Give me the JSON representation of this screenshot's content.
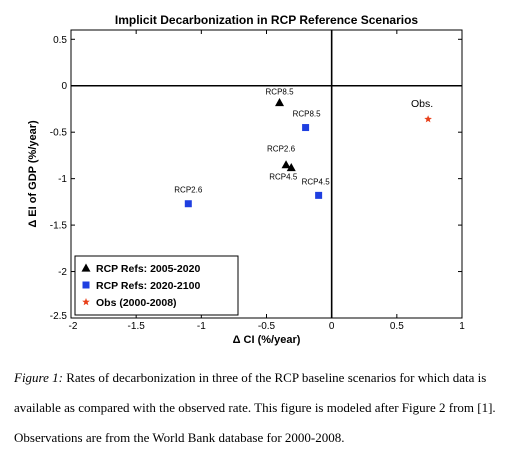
{
  "chart_data": {
    "type": "scatter",
    "title": "Implicit Decarbonization in RCP Reference Scenarios",
    "xlabel": "Δ CI (%/year)",
    "ylabel": "Δ EI of GDP (%/year)",
    "xlim": [
      -2,
      1
    ],
    "ylim": [
      -2.5,
      0.6
    ],
    "x_ticks": [
      {
        "value": -2,
        "label": "-2"
      },
      {
        "value": -1.5,
        "label": "-1.5"
      },
      {
        "value": -1,
        "label": "-1"
      },
      {
        "value": -0.5,
        "label": "-0.5"
      },
      {
        "value": 0,
        "label": "0"
      },
      {
        "value": 0.5,
        "label": "0.5"
      },
      {
        "value": 1,
        "label": "1"
      }
    ],
    "y_ticks": [
      {
        "value": 0.5,
        "label": "0.5"
      },
      {
        "value": 0,
        "label": "0"
      },
      {
        "value": -0.5,
        "label": "-0.5"
      },
      {
        "value": -1,
        "label": "-1"
      },
      {
        "value": -1.5,
        "label": "-1.5"
      },
      {
        "value": -2,
        "label": "-2"
      },
      {
        "value": -2.5,
        "label": "-2.5"
      }
    ],
    "reference_lines": {
      "x": 0,
      "y": 0
    },
    "grid": false,
    "legend_position": "bottom-left",
    "series": [
      {
        "name": "RCP Refs: 2005-2020",
        "marker": "triangle",
        "color": "#000000",
        "points": [
          {
            "x": -0.4,
            "y": -0.18,
            "label": "RCP8.5"
          },
          {
            "x": -0.35,
            "y": -0.85,
            "label": "RCP2.6"
          },
          {
            "x": -0.31,
            "y": -0.88,
            "label": "RCP4.5"
          }
        ]
      },
      {
        "name": "RCP Refs: 2020-2100",
        "marker": "square",
        "color": "#1f3fe0",
        "points": [
          {
            "x": -0.2,
            "y": -0.45,
            "label": "RCP8.5"
          },
          {
            "x": -1.1,
            "y": -1.27,
            "label": "RCP2.6"
          },
          {
            "x": -0.1,
            "y": -1.18,
            "label": "RCP4.5"
          }
        ]
      },
      {
        "name": "Obs (2000-2008)",
        "marker": "star",
        "color": "#e8401a",
        "points": [
          {
            "x": 0.74,
            "y": -0.36,
            "label": "Obs."
          }
        ]
      }
    ]
  },
  "caption": {
    "prefix": "Figure 1:",
    "line1": " Rates of decarbonization in three of the RCP baseline scenarios for which data is",
    "line2": "available as compared with the observed rate. This figure is modeled after Figure 2 from [1].",
    "line3": "Observations are from the World Bank database for 2000-2008."
  }
}
